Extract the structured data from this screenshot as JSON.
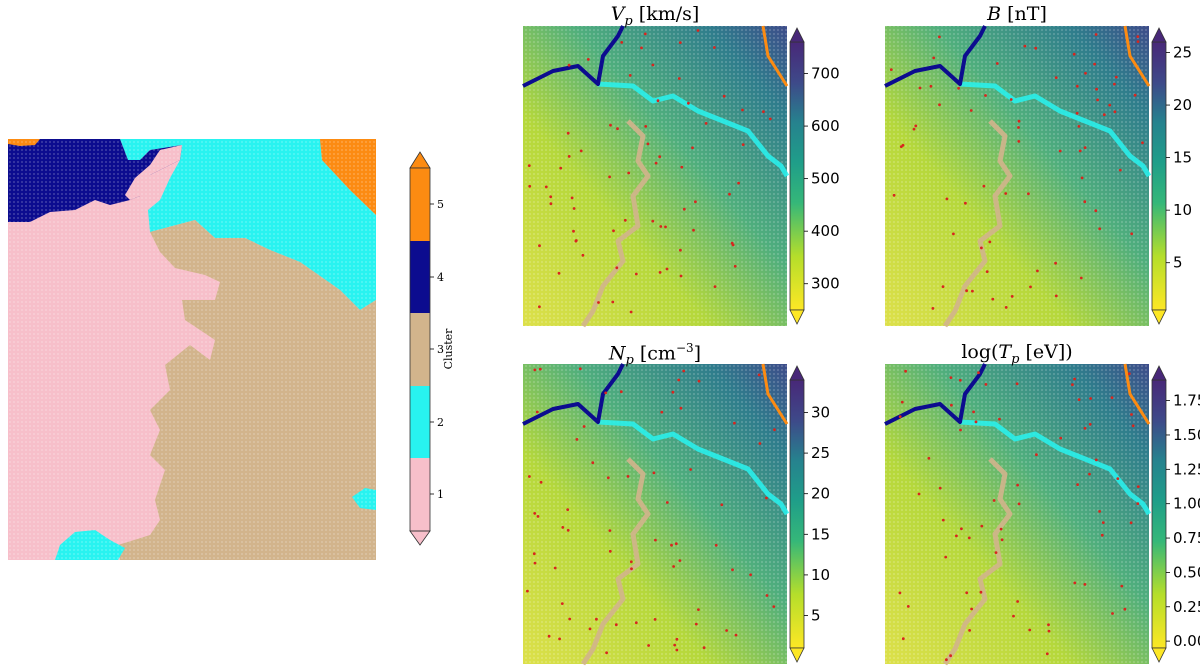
{
  "colors": {
    "pink": "#f7bfca",
    "cyan": "#28f3f0",
    "tan": "#d2b48c",
    "navy": "#0c0c8f",
    "orange": "#fc8b12",
    "red_dots": "#d8251e"
  },
  "chart_data": [
    {
      "type": "heatmap",
      "description_of_content": "Self-organizing map node clusters",
      "colorbar": {
        "label": "Cluster",
        "ticks": [
          "1",
          "2",
          "3",
          "4",
          "5"
        ],
        "colors": [
          "#f7bfca",
          "#28f3f0",
          "#d2b48c",
          "#0c0c8f",
          "#fc8b12"
        ],
        "extend": "both"
      }
    },
    {
      "type": "heatmap",
      "title_var": "V",
      "title_sub": "p",
      "title_unit": " [km/s]",
      "colorbar": {
        "ticks": [
          "300",
          "400",
          "500",
          "600",
          "700"
        ],
        "tick_values": [
          300,
          400,
          500,
          600,
          700
        ],
        "range": [
          250,
          760
        ],
        "extend": "both"
      }
    },
    {
      "type": "heatmap",
      "title_var": "B",
      "title_sub": "",
      "title_unit": " [nT]",
      "colorbar": {
        "ticks": [
          "5",
          "10",
          "15",
          "20",
          "25"
        ],
        "tick_values": [
          5,
          10,
          15,
          20,
          25
        ],
        "range": [
          0.5,
          26
        ],
        "extend": "both"
      }
    },
    {
      "type": "heatmap",
      "title_var": "N",
      "title_sub": "p",
      "title_unit": " [cm",
      "title_sup": "−3",
      "title_end": "]",
      "colorbar": {
        "ticks": [
          "5",
          "10",
          "15",
          "20",
          "25",
          "30"
        ],
        "tick_values": [
          5,
          10,
          15,
          20,
          25,
          30
        ],
        "range": [
          1,
          34
        ],
        "extend": "both"
      }
    },
    {
      "type": "heatmap",
      "title_prefix": "log(",
      "title_var": "T",
      "title_sub": "p",
      "title_unit": " [eV])",
      "colorbar": {
        "ticks": [
          "0.00",
          "0.25",
          "0.50",
          "0.75",
          "1.00",
          "1.25",
          "1.50",
          "1.75"
        ],
        "tick_values": [
          0,
          0.25,
          0.5,
          0.75,
          1.0,
          1.25,
          1.5,
          1.75
        ],
        "range": [
          -0.05,
          1.9
        ],
        "extend": "both"
      }
    }
  ]
}
